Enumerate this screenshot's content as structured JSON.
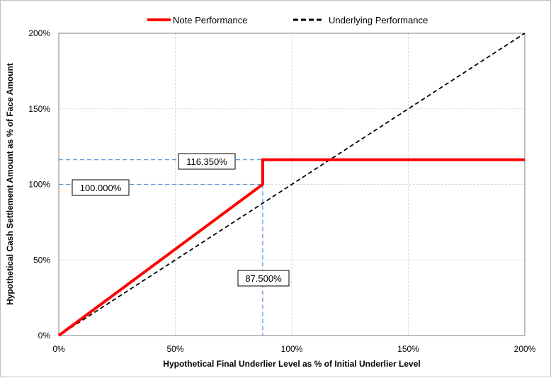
{
  "chart_data": {
    "type": "line",
    "title": "",
    "xlabel": "Hypothetical Final Underlier Level as % of Initial Underlier Level",
    "ylabel": "Hypothetical Cash Settlement Amount as % of Face Amount",
    "xlim": [
      0,
      200
    ],
    "ylim": [
      0,
      200
    ],
    "x_ticks": [
      "0%",
      "50%",
      "100%",
      "150%",
      "200%"
    ],
    "y_ticks": [
      "0%",
      "50%",
      "100%",
      "150%",
      "200%"
    ],
    "grid": true,
    "legend": "top-center",
    "series": [
      {
        "name": "Note Performance",
        "color": "#ff0000",
        "style": "solid",
        "x": [
          0,
          87.5,
          87.5,
          200
        ],
        "y": [
          0,
          100,
          116.35,
          116.35
        ]
      },
      {
        "name": "Underlying Performance",
        "color": "#000000",
        "style": "dashed",
        "x": [
          0,
          200
        ],
        "y": [
          0,
          200
        ]
      }
    ],
    "annotations": [
      {
        "text": "116.350%",
        "x": 87.5,
        "y": 116.35
      },
      {
        "text": "100.000%",
        "x": 87.5,
        "y": 100
      },
      {
        "text": "87.500%",
        "x": 87.5,
        "y": 0
      }
    ],
    "reference_line_color": "#5b9bd5"
  }
}
